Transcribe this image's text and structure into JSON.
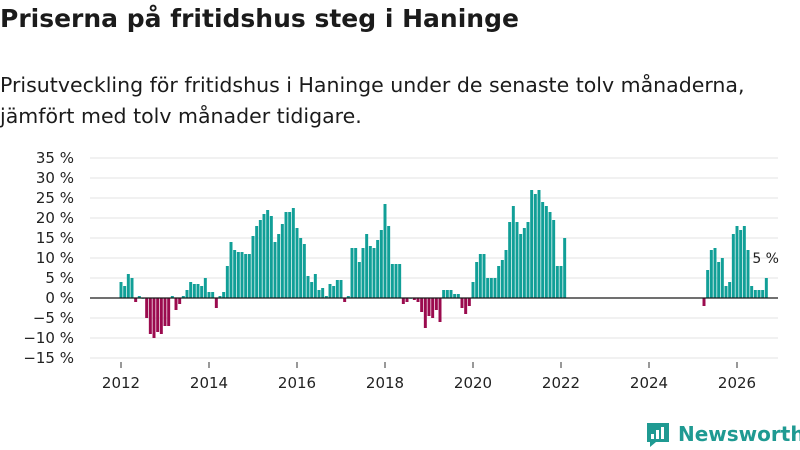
{
  "header": {
    "title": "Priserna på fritidshus steg i Haninge",
    "subtitle": "Prisutveckling för fritidshus i Haninge under de senaste tolv månaderna, jämfört med tolv månader tidigare."
  },
  "brand": {
    "name": "Newsworthy",
    "color": "#1f9a92"
  },
  "colors": {
    "positive": "#119f97",
    "negative": "#9b0b4e",
    "zero_line": "#1a1a1a",
    "grid": "#e3e3e3"
  },
  "chart_data": {
    "type": "bar",
    "title": "Priserna på fritidshus steg i Haninge",
    "xlabel": "",
    "ylabel": "",
    "ylim": [
      -15,
      35
    ],
    "yticks": [
      -15,
      -10,
      -5,
      0,
      5,
      10,
      15,
      20,
      25,
      30,
      35
    ],
    "ytick_labels": [
      "−15 %",
      "−10 %",
      "−5 %",
      "0 %",
      "5 %",
      "10 %",
      "15 %",
      "20 %",
      "25 %",
      "30 %",
      "35 %"
    ],
    "xticks": [
      2012,
      2014,
      2016,
      2018,
      2020,
      2022,
      2024,
      2026
    ],
    "xtick_labels": [
      "2012",
      "2014",
      "2016",
      "2018",
      "2020",
      "2022",
      "2024",
      "2026"
    ],
    "x_start": "2012-01",
    "values": [
      4,
      3,
      6,
      5,
      -1,
      0.5,
      0,
      -5,
      -9,
      -10,
      -8.5,
      -9,
      -7,
      -7,
      0.5,
      -3,
      -1.5,
      0.5,
      2,
      4,
      3.5,
      3.5,
      3,
      5,
      1.5,
      1.5,
      -2.5,
      0.5,
      1.5,
      8,
      14,
      12,
      11.5,
      11.5,
      11,
      11,
      15.5,
      18,
      19.5,
      21,
      22,
      20.5,
      14,
      16,
      18.5,
      21.5,
      21.5,
      22.5,
      17.5,
      15,
      13.5,
      5.5,
      4,
      6,
      2,
      2.5,
      0.5,
      3.5,
      3,
      4.5,
      4.5,
      -1,
      0.5,
      12.5,
      12.5,
      9,
      12.5,
      16,
      13,
      12.5,
      14.5,
      17,
      23.5,
      18,
      8.5,
      8.5,
      8.5,
      -1.5,
      -1,
      0,
      -0.5,
      -1,
      -3.5,
      -7.5,
      -4.5,
      -5,
      -3,
      -6,
      2,
      2,
      2,
      1,
      1,
      -2.5,
      -4,
      -2,
      4,
      9,
      11,
      11,
      5,
      5,
      5,
      8,
      9.5,
      12,
      19,
      23,
      19,
      16,
      17.5,
      19,
      27,
      26,
      27,
      24,
      23,
      21.5,
      19.5,
      8,
      8,
      15,
      null,
      null,
      null,
      null,
      null,
      null,
      null,
      null,
      null,
      null,
      null,
      null,
      null,
      null,
      null,
      null,
      null,
      null,
      null,
      null,
      null,
      null,
      null,
      null,
      null,
      null,
      null,
      null,
      null,
      null,
      null,
      null,
      null,
      null,
      null,
      null,
      null,
      -2,
      7,
      12,
      12.5,
      9,
      10,
      3,
      4,
      16,
      18,
      17,
      18,
      12,
      3,
      2,
      2,
      2,
      5
    ],
    "last_value_label": "5 %"
  }
}
